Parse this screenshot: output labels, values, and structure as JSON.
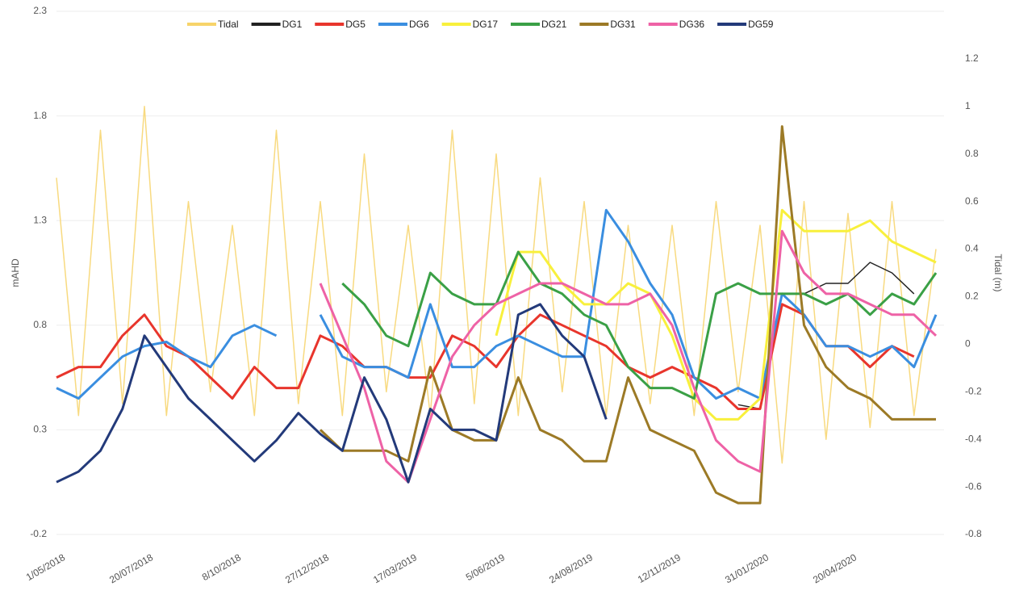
{
  "chart_data": {
    "type": "line",
    "y_label": "mAHD",
    "y2_label": "Tidal (m)",
    "categories": [
      "1/05/2018",
      null,
      null,
      null,
      "20/07/2018",
      null,
      null,
      null,
      "8/10/2018",
      null,
      null,
      null,
      "27/12/2018",
      null,
      null,
      null,
      "17/03/2019",
      null,
      null,
      null,
      "5/06/2019",
      null,
      null,
      null,
      "24/08/2019",
      null,
      null,
      null,
      "12/11/2019",
      null,
      null,
      null,
      "31/01/2020",
      null,
      null,
      null,
      "20/04/2020",
      null,
      null,
      null,
      null
    ],
    "ylim": [
      -0.2,
      2.3
    ],
    "yticks": [
      -0.2,
      0.3,
      0.8,
      1.3,
      1.8,
      2.3
    ],
    "y2lim": [
      -0.8,
      1.4
    ],
    "y2ticks": [
      -0.8,
      -0.6,
      -0.4,
      -0.2,
      0,
      0.2,
      0.4,
      0.6,
      0.8,
      1,
      1.2
    ],
    "grid": true,
    "series": [
      {
        "name": "Tidal",
        "color": "#f7d46a",
        "axis": "y2",
        "values": [
          0.7,
          -0.3,
          0.9,
          -0.25,
          1.0,
          -0.3,
          0.6,
          -0.2,
          0.5,
          -0.3,
          0.9,
          -0.25,
          0.6,
          -0.3,
          0.8,
          -0.2,
          0.5,
          -0.3,
          0.9,
          -0.25,
          0.8,
          -0.3,
          0.7,
          -0.2,
          0.6,
          -0.3,
          0.5,
          -0.25,
          0.5,
          -0.3,
          0.6,
          -0.2,
          0.5,
          -0.5,
          0.6,
          -0.4,
          0.55,
          -0.35,
          0.6,
          -0.3,
          0.4
        ]
      },
      {
        "name": "DG1",
        "color": "#222222",
        "values": [
          null,
          null,
          null,
          null,
          null,
          null,
          null,
          null,
          null,
          null,
          null,
          null,
          null,
          null,
          null,
          null,
          null,
          null,
          null,
          null,
          null,
          null,
          null,
          null,
          null,
          null,
          null,
          null,
          null,
          null,
          null,
          0.42,
          0.4,
          0.95,
          0.95,
          1.0,
          1.0,
          1.1,
          1.05,
          0.95,
          null
        ]
      },
      {
        "name": "DG5",
        "color": "#e8352c",
        "values": [
          0.55,
          0.6,
          0.6,
          0.75,
          0.85,
          0.7,
          0.65,
          0.55,
          0.45,
          0.6,
          0.5,
          0.5,
          0.75,
          0.7,
          0.6,
          0.6,
          0.55,
          0.55,
          0.75,
          0.7,
          0.6,
          0.75,
          0.85,
          0.8,
          0.75,
          0.7,
          0.6,
          0.55,
          0.6,
          0.55,
          0.5,
          0.4,
          0.4,
          0.9,
          0.85,
          0.7,
          0.7,
          0.6,
          0.7,
          0.65,
          null
        ]
      },
      {
        "name": "DG6",
        "color": "#3a8ee0",
        "values": [
          0.5,
          0.45,
          0.55,
          0.65,
          0.7,
          0.72,
          0.65,
          0.6,
          0.75,
          0.8,
          0.75,
          null,
          0.85,
          0.65,
          0.6,
          0.6,
          0.55,
          0.9,
          0.6,
          0.6,
          0.7,
          0.75,
          0.7,
          0.65,
          0.65,
          1.35,
          1.2,
          1.0,
          0.85,
          0.55,
          0.45,
          0.5,
          0.45,
          0.95,
          0.85,
          0.7,
          0.7,
          0.65,
          0.7,
          0.6,
          0.85
        ]
      },
      {
        "name": "DG17",
        "color": "#f8f03c",
        "values": [
          null,
          null,
          null,
          null,
          null,
          null,
          null,
          null,
          null,
          null,
          null,
          null,
          null,
          null,
          null,
          null,
          null,
          null,
          null,
          null,
          0.75,
          1.15,
          1.15,
          1.0,
          0.9,
          0.9,
          1.0,
          0.95,
          0.75,
          0.45,
          0.35,
          0.35,
          0.45,
          1.35,
          1.25,
          1.25,
          1.25,
          1.3,
          1.2,
          1.15,
          1.1
        ]
      },
      {
        "name": "DG21",
        "color": "#3aa046",
        "values": [
          null,
          null,
          null,
          null,
          null,
          null,
          null,
          null,
          null,
          null,
          null,
          null,
          null,
          1.0,
          0.9,
          0.75,
          0.7,
          1.05,
          0.95,
          0.9,
          0.9,
          1.15,
          1.0,
          0.95,
          0.85,
          0.8,
          0.6,
          0.5,
          0.5,
          0.45,
          0.95,
          1.0,
          0.95,
          0.95,
          0.95,
          0.9,
          0.95,
          0.85,
          0.95,
          0.9,
          1.05
        ]
      },
      {
        "name": "DG31",
        "color": "#9c7a26",
        "values": [
          null,
          null,
          null,
          null,
          null,
          null,
          null,
          null,
          null,
          null,
          null,
          null,
          0.3,
          0.2,
          0.2,
          0.2,
          0.15,
          0.6,
          0.3,
          0.25,
          0.25,
          0.55,
          0.3,
          0.25,
          0.15,
          0.15,
          0.55,
          0.3,
          0.25,
          0.2,
          0.0,
          -0.05,
          -0.05,
          1.75,
          0.8,
          0.6,
          0.5,
          0.45,
          0.35,
          0.35,
          0.35
        ]
      },
      {
        "name": "DG36",
        "color": "#ee62a6",
        "values": [
          null,
          null,
          null,
          null,
          null,
          null,
          null,
          null,
          null,
          null,
          null,
          null,
          1.0,
          0.75,
          0.5,
          0.15,
          0.05,
          0.35,
          0.65,
          0.8,
          0.9,
          0.95,
          1.0,
          1.0,
          0.95,
          0.9,
          0.9,
          0.95,
          0.8,
          0.5,
          0.25,
          0.15,
          0.1,
          1.25,
          1.05,
          0.95,
          0.95,
          0.9,
          0.85,
          0.85,
          0.75
        ]
      },
      {
        "name": "DG59",
        "color": "#233a7a",
        "values": [
          0.05,
          0.1,
          0.2,
          0.4,
          0.75,
          0.6,
          0.45,
          0.35,
          0.25,
          0.15,
          0.25,
          0.38,
          0.28,
          0.2,
          0.55,
          0.35,
          0.05,
          0.4,
          0.3,
          0.3,
          0.25,
          0.85,
          0.9,
          0.75,
          0.65,
          0.35,
          null,
          null,
          null,
          null,
          null,
          null,
          null,
          null,
          null,
          null,
          null,
          null,
          null,
          null,
          null
        ]
      }
    ]
  }
}
